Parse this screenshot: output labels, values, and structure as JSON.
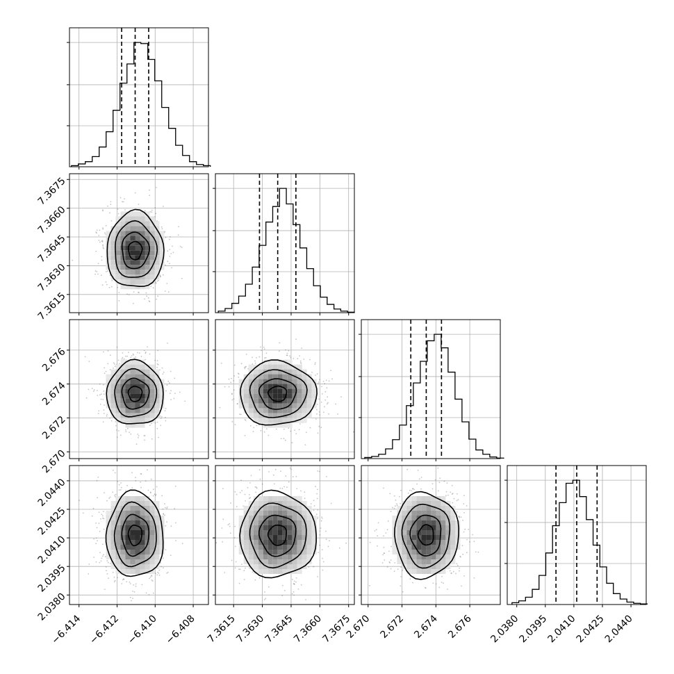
{
  "chart_data": {
    "type": "corner",
    "grid": true,
    "parameters": [
      {
        "range": [
          -6.4145,
          -6.4072
        ],
        "ticks": [
          "−6.414",
          "−6.412",
          "−6.410",
          "−6.408"
        ],
        "tick_values": [
          -6.414,
          -6.412,
          -6.41,
          -6.408
        ],
        "quantiles": [
          -6.41176,
          -6.41105,
          -6.41034
        ],
        "hist_edges_start": -6.4144,
        "hist_bin": 0.000365,
        "hist_counts": [
          2,
          5,
          9,
          18,
          35,
          62,
          100,
          148,
          182,
          220,
          218,
          190,
          152,
          105,
          68,
          38,
          20,
          9,
          4,
          2
        ]
      },
      {
        "range": [
          7.36055,
          7.3678
        ],
        "ticks": [
          "7.3615",
          "7.3630",
          "7.3645",
          "7.3660",
          "7.3675"
        ],
        "tick_values": [
          7.3615,
          7.363,
          7.3645,
          7.366,
          7.3675
        ],
        "quantiles": [
          7.36285,
          7.3638,
          7.36475
        ],
        "hist_edges_start": 7.3607,
        "hist_bin": 0.000355,
        "hist_counts": [
          3,
          8,
          18,
          32,
          55,
          88,
          130,
          175,
          205,
          240,
          210,
          170,
          125,
          85,
          52,
          30,
          16,
          7,
          3,
          1
        ]
      },
      {
        "range": [
          2.6696,
          2.6778
        ],
        "ticks": [
          "2.670",
          "2.672",
          "2.674",
          "2.676"
        ],
        "tick_values": [
          2.67,
          2.672,
          2.674,
          2.676
        ],
        "quantiles": [
          2.67252,
          2.67343,
          2.67433
        ],
        "hist_edges_start": 2.6698,
        "hist_bin": 0.00041,
        "hist_counts": [
          2,
          4,
          8,
          18,
          35,
          62,
          98,
          140,
          180,
          218,
          230,
          205,
          160,
          110,
          68,
          36,
          16,
          8,
          3,
          1
        ]
      },
      {
        "range": [
          2.0375,
          2.0448
        ],
        "ticks": [
          "2.0380",
          "2.0395",
          "2.0410",
          "2.0425",
          "2.0440"
        ],
        "tick_values": [
          2.038,
          2.0395,
          2.041,
          2.0425,
          2.044
        ],
        "quantiles": [
          2.04006,
          2.04115,
          2.04222
        ],
        "hist_edges_start": 2.03775,
        "hist_bin": 0.000355,
        "hist_counts": [
          3,
          6,
          12,
          25,
          48,
          85,
          130,
          168,
          200,
          205,
          178,
          140,
          98,
          62,
          35,
          18,
          9,
          4,
          2,
          1
        ]
      }
    ],
    "colors": {
      "line": "#000000",
      "grid": "#b0b0b0",
      "points": "#555555"
    }
  }
}
